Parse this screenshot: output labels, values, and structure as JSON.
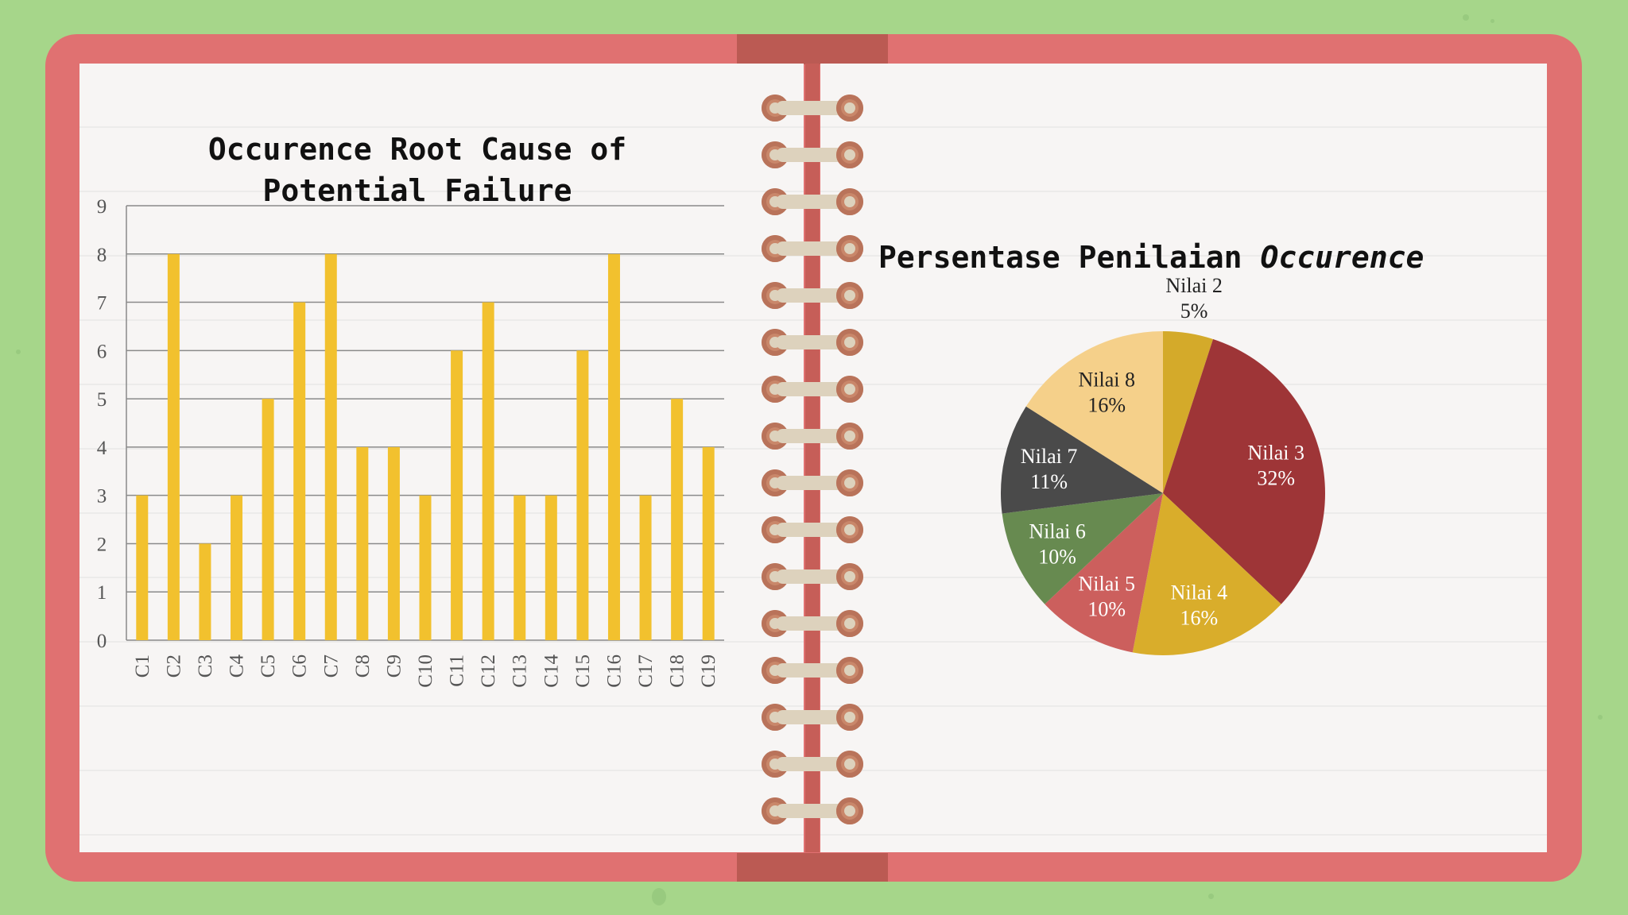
{
  "bar_chart": {
    "title_line1": "Occurence Root Cause of",
    "title_line2": "Potential Failure"
  },
  "pie_chart": {
    "title_main": "Persentase Penilaian ",
    "title_italic": "Occurence"
  },
  "colors": {
    "background": "#a6d68a",
    "cover": "#e07171",
    "bar": "#f2c12e"
  },
  "chart_data": [
    {
      "type": "bar",
      "title": "Occurence Root Cause of Potential Failure",
      "categories": [
        "C1",
        "C2",
        "C3",
        "C4",
        "C5",
        "C6",
        "C7",
        "C8",
        "C9",
        "C10",
        "C11",
        "C12",
        "C13",
        "C14",
        "C15",
        "C16",
        "C17",
        "C18",
        "C19"
      ],
      "values": [
        3,
        8,
        2,
        3,
        5,
        7,
        8,
        4,
        4,
        3,
        6,
        7,
        3,
        3,
        6,
        8,
        3,
        5,
        4
      ],
      "ylim": [
        0,
        9
      ],
      "yticks": [
        "0",
        "1",
        "2",
        "3",
        "4",
        "5",
        "6",
        "7",
        "8",
        "9"
      ],
      "grid": true,
      "color": "#f2c12e"
    },
    {
      "type": "pie",
      "title": "Persentase Penilaian Occurence",
      "slices": [
        {
          "label": "Nilai 2",
          "value": 5,
          "pct_text": "5%",
          "color": "#d4aa2a",
          "text_color": "#222222"
        },
        {
          "label": "Nilai 3",
          "value": 32,
          "pct_text": "32%",
          "color": "#9e3537",
          "text_color": "#ffffff"
        },
        {
          "label": "Nilai 4",
          "value": 16,
          "pct_text": "16%",
          "color": "#d9ad2b",
          "text_color": "#ffffff"
        },
        {
          "label": "Nilai 5",
          "value": 10,
          "pct_text": "10%",
          "color": "#cc5f5d",
          "text_color": "#ffffff"
        },
        {
          "label": "Nilai 6",
          "value": 10,
          "pct_text": "10%",
          "color": "#678a50",
          "text_color": "#ffffff"
        },
        {
          "label": "Nilai 7",
          "value": 11,
          "pct_text": "11%",
          "color": "#4a4a4a",
          "text_color": "#ffffff"
        },
        {
          "label": "Nilai 8",
          "value": 16,
          "pct_text": "16%",
          "color": "#f5d08a",
          "text_color": "#222222"
        }
      ]
    }
  ]
}
